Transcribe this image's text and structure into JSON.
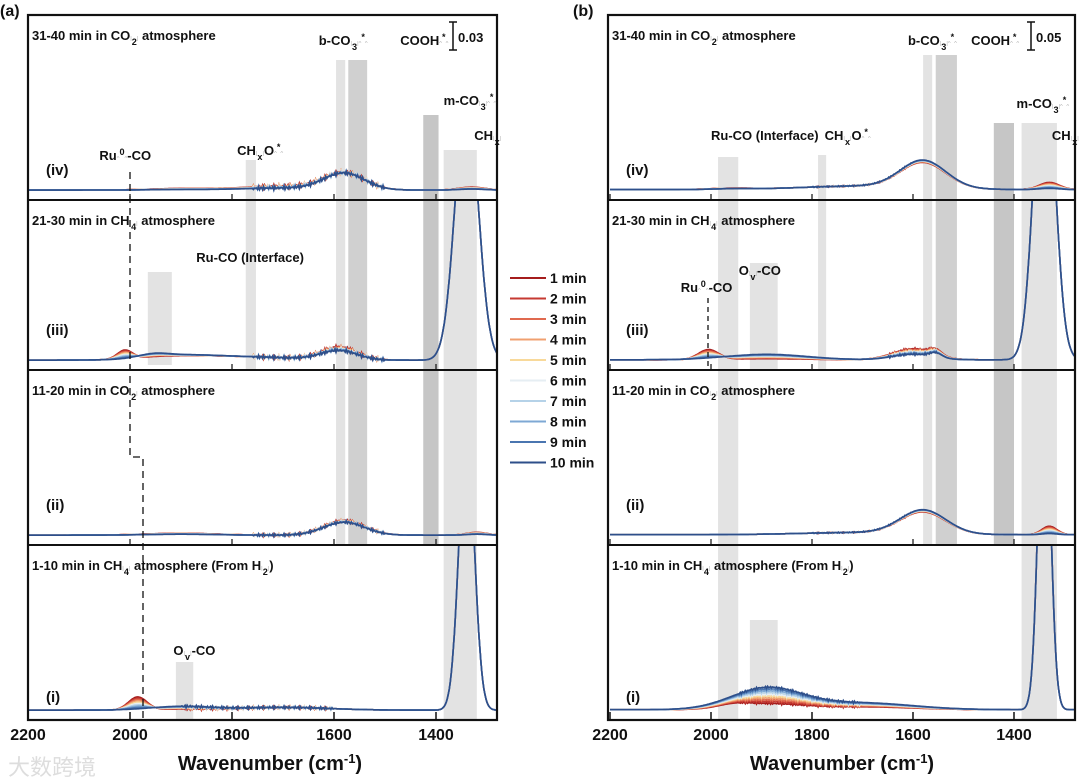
{
  "chart_data": [
    {
      "type": "line",
      "panel_label": "(a)",
      "xlabel": "Wavenumber (cm-1)",
      "xlim": [
        2200,
        1280
      ],
      "xticks": [
        2200,
        2000,
        1800,
        1600,
        1400
      ],
      "scale_bar": "0.03",
      "scale_bar_value": 0.03,
      "panel_range": 0.19,
      "subplots": [
        {
          "id": "iv",
          "title": "31-40 min in CO|2| atmosphere",
          "tag": "(iv)",
          "baseline": 0.002,
          "peaks": [
            [
              1580,
              40,
              0.017,
              0.017
            ],
            [
              1700,
              80,
              0.004,
              0.002
            ],
            [
              1900,
              60,
              0.0015,
              0.0005
            ],
            [
              1330,
              25,
              0.003,
              0.001
            ]
          ],
          "noise": [
            1500,
            1760,
            0.002
          ]
        },
        {
          "id": "iii",
          "title": "21-30 min in CH|4| atmosphere",
          "tag": "(iii)",
          "baseline": 0.002,
          "peaks": [
            [
              2010,
              15,
              0.01,
              0
            ],
            [
              1955,
              30,
              0.001,
              0.004
            ],
            [
              1800,
              120,
              0.004,
              0.004
            ],
            [
              1590,
              35,
              0.014,
              0.01
            ],
            [
              1340,
              22,
              0.3,
              0.3
            ],
            [
              1900,
              60,
              0.002,
              0.003
            ]
          ],
          "noise": [
            1500,
            1760,
            0.002
          ]
        },
        {
          "id": "ii",
          "title": "11-20 min in CO|2| atmosphere",
          "tag": "(ii)",
          "baseline": 0.002,
          "peaks": [
            [
              1580,
              40,
              0.016,
              0.014
            ],
            [
              1900,
              70,
              0.002,
              0.001
            ],
            [
              1320,
              20,
              0.003,
              0.001
            ]
          ],
          "noise": [
            1500,
            1760,
            0.0015
          ]
        },
        {
          "id": "i",
          "title": "1-10 min in CH|4| atmosphere (From H|2|)",
          "tag": "(i)",
          "baseline": 0.002,
          "peaks": [
            [
              1985,
              18,
              0.014,
              0
            ],
            [
              1900,
              60,
              0.001,
              0.004
            ],
            [
              1700,
              90,
              0.003,
              0.003
            ],
            [
              1340,
              15,
              0.3,
              0.3
            ]
          ],
          "noise": [
            1600,
            1900,
            0.0015
          ]
        }
      ],
      "annotations": [
        "Ru^0^-CO",
        "CH|x|O^*^",
        "b-CO|3|^*^",
        "COOH^*^",
        "m-CO|3|^*^",
        "CH|x|",
        "Ru-CO (Interface)",
        "O|v|-CO"
      ]
    },
    {
      "type": "line",
      "panel_label": "(b)",
      "xlabel": "Wavenumber (cm-1)",
      "xlim": [
        2200,
        1275
      ],
      "xticks": [
        2200,
        2000,
        1800,
        1600,
        1400
      ],
      "scale_bar": "0.05",
      "scale_bar_value": 0.05,
      "panel_range": 0.31,
      "subplots": [
        {
          "id": "iv",
          "title": "31-40 min in CO|2| atmosphere",
          "tag": "(iv)",
          "baseline": 0.004,
          "peaks": [
            [
              1580,
              45,
              0.042,
              0.046
            ],
            [
              1700,
              120,
              0.006,
              0.006
            ],
            [
              1960,
              40,
              0.002,
              0.001
            ],
            [
              1330,
              20,
              0.012,
              0.002
            ]
          ],
          "noise": [
            1600,
            1800,
            0.001
          ]
        },
        {
          "id": "iii",
          "title": "21-30 min in CH|4| atmosphere",
          "tag": "(iii)",
          "baseline": 0.004,
          "peaks": [
            [
              2005,
              20,
              0.018,
              0
            ],
            [
              1890,
              80,
              0.002,
              0.01
            ],
            [
              1600,
              40,
              0.02,
              0.01
            ],
            [
              1555,
              12,
              0.01,
              0.008
            ],
            [
              1340,
              20,
              0.6,
              0.6
            ]
          ],
          "noise": [
            1550,
            1650,
            0.002
          ]
        },
        {
          "id": "ii",
          "title": "11-20 min in CO|2| atmosphere",
          "tag": "(ii)",
          "baseline": 0.004,
          "peaks": [
            [
              1580,
              45,
              0.038,
              0.042
            ],
            [
              1330,
              15,
              0.015,
              0.002
            ],
            [
              1700,
              120,
              0.004,
              0.004
            ]
          ],
          "noise": [
            1600,
            1800,
            0.001
          ]
        },
        {
          "id": "i",
          "title": "1-10 min in CH|4| atmosphere (From H|2|)",
          "tag": "(i)",
          "baseline": 0.004,
          "peaks": [
            [
              1955,
              30,
              0.005,
              0
            ],
            [
              1890,
              70,
              0.01,
              0.038
            ],
            [
              1700,
              100,
              0.005,
              0.012
            ],
            [
              1340,
              12,
              0.6,
              0.6
            ]
          ],
          "noise": [
            1700,
            1950,
            0.002
          ]
        }
      ],
      "annotations": [
        "Ru-CO (Interface)",
        "CH|x|O^*^",
        "b-CO|3|^*^",
        "COOH^*^",
        "m-CO|3|^*^",
        "CH|x|",
        "Ru^0^-CO",
        "O|v|-CO"
      ]
    }
  ],
  "legend": {
    "entries": [
      "1 min",
      "2 min",
      "3 min",
      "4 min",
      "5 min",
      "6 min",
      "7 min",
      "8 min",
      "9 min",
      "10 min"
    ],
    "colors": [
      "#a51c1c",
      "#c63a32",
      "#e0694f",
      "#f0a070",
      "#f8d99a",
      "#e6eef3",
      "#b5d2e8",
      "#7ea8d4",
      "#4a75b0",
      "#2e4f8a"
    ]
  },
  "watermark": "大数跨境"
}
